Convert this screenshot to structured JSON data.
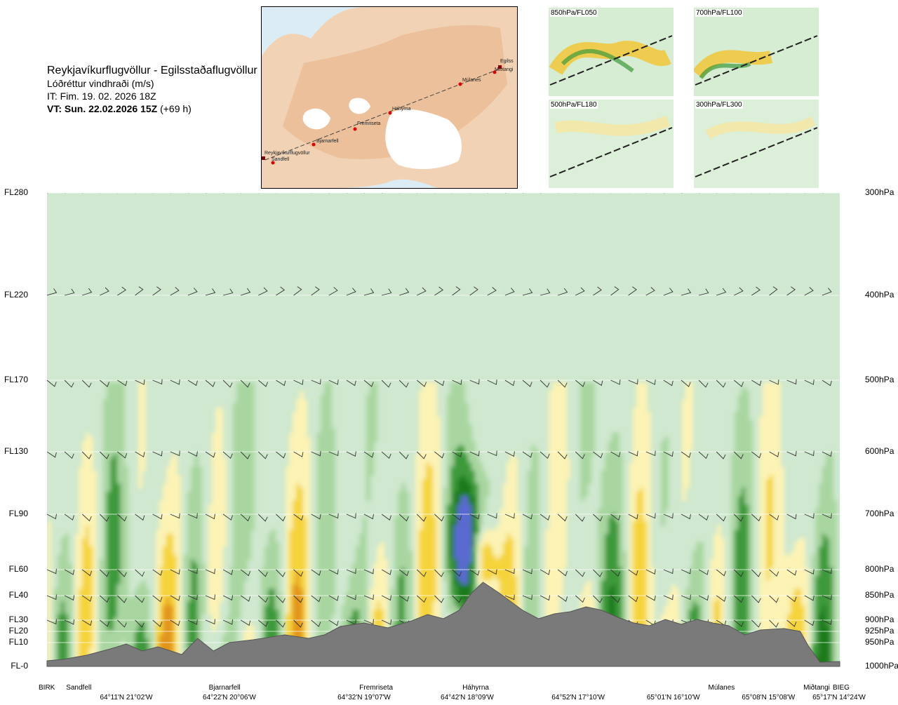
{
  "header": {
    "title": "Reykjavíkurflugvöllur - Egilsstaðaflugvöllur",
    "subtitle": "Lóðréttur vindhraði (m/s)",
    "it": "IT: Fim. 19. 02. 2026 18Z",
    "vt_bold": "VT: Sun. 22.02.2026 15Z",
    "vt_rest": " (+69 h)"
  },
  "map": {
    "places": [
      "Reykjavíkurflugvöllur",
      "Sandfell",
      "Bjarnarfell",
      "Fremriseta",
      "Háhyrna",
      "Múlanes",
      "Miðtangi",
      "Egilss"
    ]
  },
  "thumbnails": [
    {
      "label": "850hPa/FL050"
    },
    {
      "label": "700hPa/FL100"
    },
    {
      "label": "500hPa/FL180"
    },
    {
      "label": "300hPa/FL300"
    }
  ],
  "chart_data": {
    "type": "heatmap",
    "quantity": "Lóðréttur vindhraði (m/s)",
    "flight_levels": [
      {
        "label": "FL280",
        "hpa": "300hPa",
        "level": 300
      },
      {
        "label": "FL220",
        "hpa": "400hPa",
        "level": 400
      },
      {
        "label": "FL170",
        "hpa": "500hPa",
        "level": 500
      },
      {
        "label": "FL130",
        "hpa": "600hPa",
        "level": 600
      },
      {
        "label": "FL90",
        "hpa": "700hPa",
        "level": 700
      },
      {
        "label": "FL60",
        "hpa": "800hPa",
        "level": 800
      },
      {
        "label": "FL40",
        "hpa": "850hPa",
        "level": 850
      },
      {
        "label": "FL30",
        "hpa": "900hPa",
        "level": 900
      },
      {
        "label": "FL20",
        "hpa": "925hPa",
        "level": 925
      },
      {
        "label": "FL10",
        "hpa": "950hPa",
        "level": 950
      },
      {
        "label": "FL-0",
        "hpa": "1000hPa",
        "level": 1000
      }
    ],
    "waypoints": [
      {
        "name": "BIRK",
        "pos": 0.0
      },
      {
        "name": "Sandfell",
        "pos": 0.04
      },
      {
        "name": "Bjarnarfell",
        "pos": 0.22
      },
      {
        "name": "Fremriseta",
        "pos": 0.41
      },
      {
        "name": "Háhyrna",
        "pos": 0.54
      },
      {
        "name": "Múlanes",
        "pos": 0.85
      },
      {
        "name": "Miðtangi",
        "pos": 0.97
      },
      {
        "name": "BIEG",
        "pos": 1.0
      }
    ],
    "coordinates": [
      {
        "label": "64°11'N 21°02'W",
        "pos": 0.1
      },
      {
        "label": "64°22'N 20°06'W",
        "pos": 0.23
      },
      {
        "label": "64°32'N 19°07'W",
        "pos": 0.4
      },
      {
        "label": "64°42'N 18°09'W",
        "pos": 0.53
      },
      {
        "label": "64°52'N 17°10'W",
        "pos": 0.67
      },
      {
        "label": "65°01'N 16°10'W",
        "pos": 0.79
      },
      {
        "label": "65°08'N 15°08'W",
        "pos": 0.91
      },
      {
        "label": "65°17'N 14°24'W",
        "pos": 1.0
      }
    ],
    "colors": {
      "background": "#cfe8cf",
      "weak_up": "#fcf3b5",
      "mod_up": "#f5d43a",
      "strong_up": "#e2951c",
      "very_strong_up": "#a8321c",
      "weak_down": "#a9d6a0",
      "mod_down": "#3d9a3a",
      "strong_down": "#1e7a1e",
      "very_strong_down": "#5a6ad0",
      "terrain": "#7a7a7a"
    }
  }
}
